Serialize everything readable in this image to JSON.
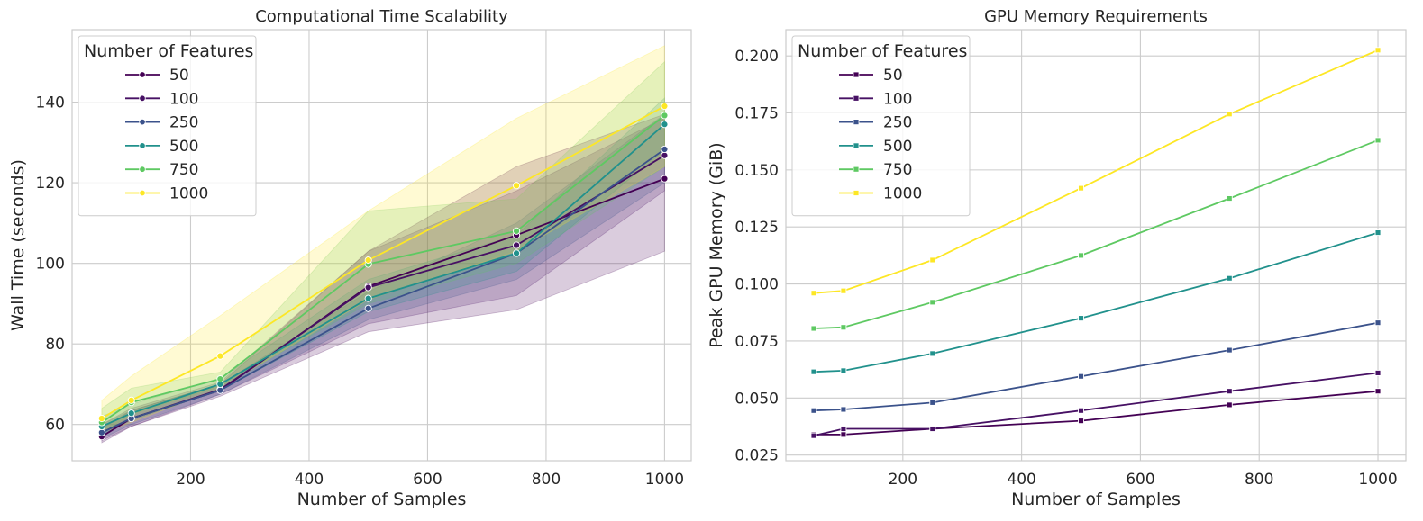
{
  "chart_data": [
    {
      "type": "line",
      "title": "Computational Time Scalability",
      "xlabel": "Number of Samples",
      "ylabel": "Wall Time (seconds)",
      "x": [
        50,
        100,
        250,
        500,
        750,
        1000
      ],
      "xlim": [
        0,
        1045
      ],
      "ylim": [
        51,
        158
      ],
      "xticks": [
        200,
        400,
        600,
        800,
        1000
      ],
      "yticks": [
        60,
        80,
        100,
        120,
        140
      ],
      "grid": true,
      "marker": "circle",
      "confidence_band": true,
      "legend": {
        "title": "Number of Features",
        "placement": "top-left"
      },
      "series": [
        {
          "name": "50",
          "color": "#440154",
          "values": [
            57.0,
            61.5,
            68.5,
            94.3,
            107.0,
            121.0
          ],
          "lower": [
            55.5,
            59.5,
            67.0,
            83.0,
            88.5,
            103.0
          ],
          "upper": [
            59.0,
            63.5,
            70.0,
            103.0,
            124.0,
            137.0
          ]
        },
        {
          "name": "100",
          "color": "#471164",
          "values": [
            58.0,
            61.5,
            68.7,
            94.0,
            104.5,
            126.8
          ],
          "lower": [
            56.0,
            59.5,
            67.5,
            85.0,
            92.0,
            118.0
          ],
          "upper": [
            60.0,
            64.0,
            70.5,
            103.0,
            118.0,
            136.0
          ]
        },
        {
          "name": "250",
          "color": "#3b528b",
          "values": [
            58.0,
            61.5,
            68.5,
            88.8,
            102.5,
            128.3
          ],
          "lower": [
            56.5,
            60.0,
            67.5,
            86.0,
            96.0,
            120.0
          ],
          "upper": [
            60.0,
            63.5,
            70.0,
            93.0,
            110.0,
            137.0
          ]
        },
        {
          "name": "500",
          "color": "#21918c",
          "values": [
            59.5,
            62.8,
            70.0,
            91.3,
            102.5,
            134.5
          ],
          "lower": [
            57.5,
            61.0,
            68.5,
            88.0,
            98.0,
            128.0
          ],
          "upper": [
            62.0,
            65.0,
            71.5,
            96.0,
            107.0,
            141.0
          ]
        },
        {
          "name": "750",
          "color": "#5ec962",
          "values": [
            60.5,
            65.5,
            71.3,
            99.8,
            108.0,
            136.7
          ],
          "lower": [
            58.0,
            62.5,
            69.5,
            90.0,
            100.0,
            124.0
          ],
          "upper": [
            64.0,
            69.0,
            73.0,
            113.0,
            116.0,
            150.0
          ]
        },
        {
          "name": "1000",
          "color": "#fde725",
          "values": [
            61.5,
            66.0,
            77.0,
            100.8,
            119.3,
            139.0
          ],
          "lower": [
            58.0,
            60.5,
            69.0,
            91.0,
            103.0,
            124.0
          ],
          "upper": [
            66.0,
            72.0,
            87.0,
            113.0,
            136.0,
            154.0
          ]
        }
      ]
    },
    {
      "type": "line",
      "title": "GPU Memory Requirements",
      "xlabel": "Number of Samples",
      "ylabel": "Peak GPU Memory (GiB)",
      "x": [
        50,
        100,
        250,
        500,
        750,
        1000
      ],
      "xlim": [
        3,
        1047
      ],
      "ylim": [
        0.0225,
        0.2115
      ],
      "xticks": [
        200,
        400,
        600,
        800,
        1000
      ],
      "yticks": [
        0.025,
        0.05,
        0.075,
        0.1,
        0.125,
        0.15,
        0.175,
        0.2
      ],
      "ytick_labels": [
        "0.025",
        "0.050",
        "0.075",
        "0.100",
        "0.125",
        "0.150",
        "0.175",
        "0.200"
      ],
      "grid": true,
      "marker": "square",
      "legend": {
        "title": "Number of Features",
        "placement": "top-left"
      },
      "series": [
        {
          "name": "50",
          "color": "#440154",
          "values": [
            0.034,
            0.034,
            0.0365,
            0.04,
            0.047,
            0.053
          ]
        },
        {
          "name": "100",
          "color": "#471164",
          "values": [
            0.0335,
            0.0365,
            0.0365,
            0.0445,
            0.053,
            0.061
          ]
        },
        {
          "name": "250",
          "color": "#3b528b",
          "values": [
            0.0445,
            0.045,
            0.048,
            0.0595,
            0.071,
            0.083
          ]
        },
        {
          "name": "500",
          "color": "#21918c",
          "values": [
            0.0615,
            0.062,
            0.0695,
            0.085,
            0.1025,
            0.1225
          ]
        },
        {
          "name": "750",
          "color": "#5ec962",
          "values": [
            0.0805,
            0.081,
            0.092,
            0.1125,
            0.1375,
            0.163
          ]
        },
        {
          "name": "1000",
          "color": "#fde725",
          "values": [
            0.096,
            0.097,
            0.1105,
            0.142,
            0.1745,
            0.2025
          ]
        }
      ]
    }
  ]
}
